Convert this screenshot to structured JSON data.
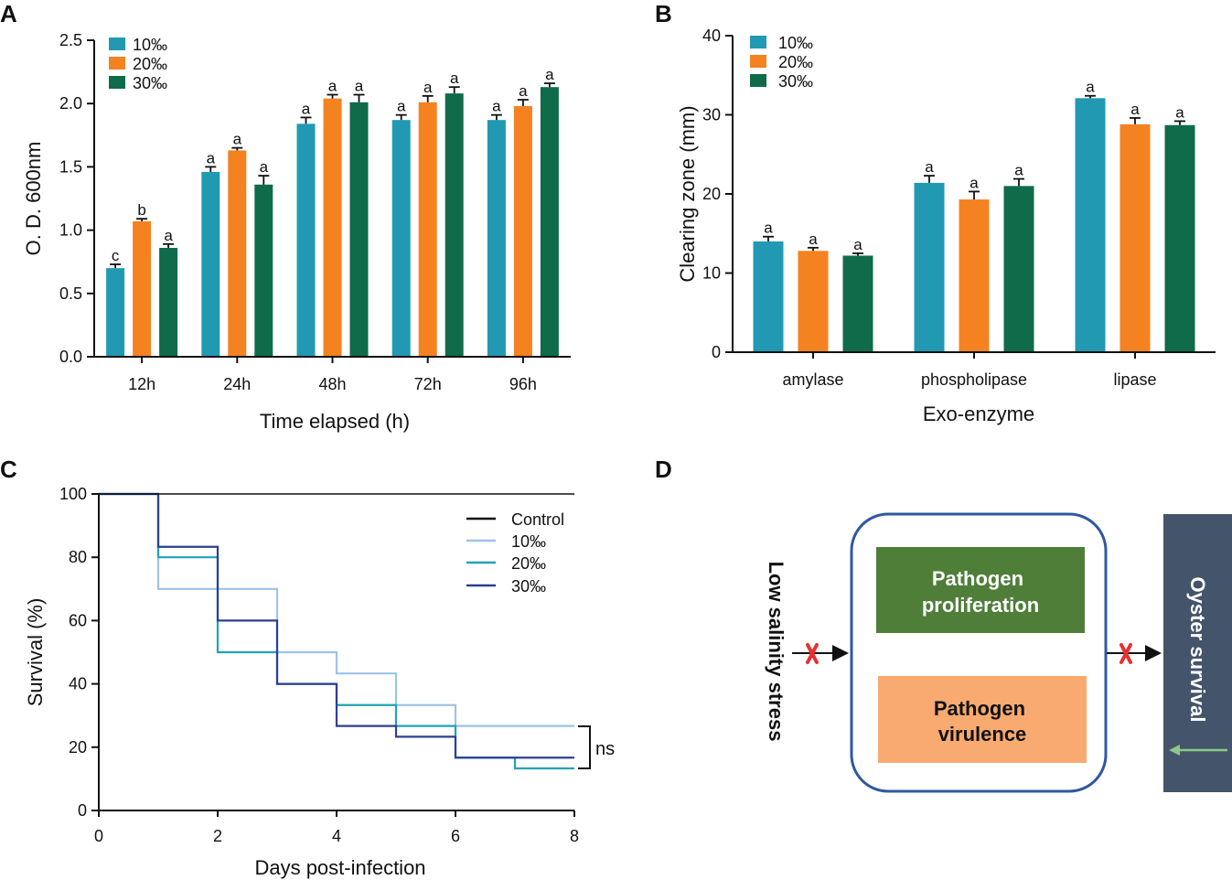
{
  "chart_data": [
    {
      "panel": "A",
      "type": "bar",
      "xlabel": "Time elapsed (h)",
      "ylabel": "O. D. 600nm",
      "ylim": [
        0,
        2.5
      ],
      "yticks": [
        "0.0",
        "0.5",
        "1.0",
        "1.5",
        "2.0",
        "2.5"
      ],
      "categories": [
        "12h",
        "24h",
        "48h",
        "72h",
        "96h"
      ],
      "legend_position": "top-left",
      "series": [
        {
          "name": "10‰",
          "color": "#2199B3",
          "values": [
            0.7,
            1.46,
            1.84,
            1.87,
            1.87
          ],
          "errors": [
            0.03,
            0.04,
            0.05,
            0.04,
            0.04
          ],
          "labels": [
            "c",
            "a",
            "a",
            "a",
            "a"
          ]
        },
        {
          "name": "20‰",
          "color": "#F58220",
          "values": [
            1.07,
            1.63,
            2.04,
            2.01,
            1.98
          ],
          "errors": [
            0.02,
            0.02,
            0.03,
            0.05,
            0.05
          ],
          "labels": [
            "b",
            "a",
            "a",
            "a",
            "a"
          ]
        },
        {
          "name": "30‰",
          "color": "#0F6B4A",
          "values": [
            0.86,
            1.36,
            2.01,
            2.08,
            2.13
          ],
          "errors": [
            0.03,
            0.07,
            0.06,
            0.05,
            0.03
          ],
          "labels": [
            "a",
            "a",
            "a",
            "a",
            "a"
          ]
        }
      ]
    },
    {
      "panel": "B",
      "type": "bar",
      "xlabel": "Exo-enzyme",
      "ylabel": "Clearing zone (mm)",
      "ylim": [
        0,
        40
      ],
      "yticks": [
        "0",
        "10",
        "20",
        "30",
        "40"
      ],
      "categories": [
        "amylase",
        "phospholipase",
        "lipase"
      ],
      "legend_position": "top-left",
      "series": [
        {
          "name": "10‰",
          "color": "#2199B3",
          "values": [
            14.0,
            21.4,
            32.1
          ],
          "errors": [
            0.6,
            0.9,
            0.3
          ],
          "labels": [
            "a",
            "a",
            "a"
          ]
        },
        {
          "name": "20‰",
          "color": "#F58220",
          "values": [
            12.8,
            19.3,
            28.8
          ],
          "errors": [
            0.4,
            1.0,
            0.8
          ],
          "labels": [
            "a",
            "a",
            "a"
          ]
        },
        {
          "name": "30‰",
          "color": "#0F6B4A",
          "values": [
            12.2,
            21.0,
            28.7
          ],
          "errors": [
            0.3,
            0.9,
            0.5
          ],
          "labels": [
            "a",
            "a",
            "a"
          ]
        }
      ]
    },
    {
      "panel": "C",
      "type": "line",
      "subtype": "kaplan-meier",
      "xlabel": "Days post-infection",
      "ylabel": "Survival (%)",
      "xlim": [
        0,
        8
      ],
      "ylim": [
        0,
        100
      ],
      "xticks": [
        "0",
        "2",
        "4",
        "6",
        "8"
      ],
      "yticks": [
        "0",
        "20",
        "40",
        "60",
        "80",
        "100"
      ],
      "legend_position": "top-right",
      "annotation": "ns",
      "series": [
        {
          "name": "Control",
          "color": "#111111",
          "x": [
            0,
            8
          ],
          "y": [
            100,
            100
          ]
        },
        {
          "name": "10‰",
          "color": "#9DC3E6",
          "x": [
            0,
            1,
            2,
            3,
            4,
            5,
            6,
            7,
            8
          ],
          "y": [
            100,
            70,
            70,
            50,
            43.3,
            33.3,
            26.7,
            26.7,
            26.7
          ]
        },
        {
          "name": "20‰",
          "color": "#22A3B5",
          "x": [
            0,
            1,
            2,
            3,
            4,
            5,
            6,
            7,
            8
          ],
          "y": [
            100,
            80,
            50,
            40,
            33.3,
            26.7,
            16.7,
            13.3,
            13.3
          ]
        },
        {
          "name": "30‰",
          "color": "#2E3E94",
          "x": [
            0,
            1,
            2,
            3,
            4,
            5,
            6,
            7,
            8
          ],
          "y": [
            100,
            83.3,
            60,
            40,
            26.7,
            23.3,
            16.7,
            16.7,
            16.7
          ]
        }
      ]
    }
  ],
  "diagram": {
    "panel": "D",
    "input_label": "Low salinity stress",
    "box1": "Pathogen proliferation",
    "box2": "Pathogen virulence",
    "output_label": "Oyster survival",
    "colors": {
      "box1": "#4E7E38",
      "box2": "#F8AA70",
      "frame": "#2F58A0",
      "output": "#44546A",
      "blocked": "#E8302E",
      "arrow_green": "#8DC88A"
    }
  }
}
